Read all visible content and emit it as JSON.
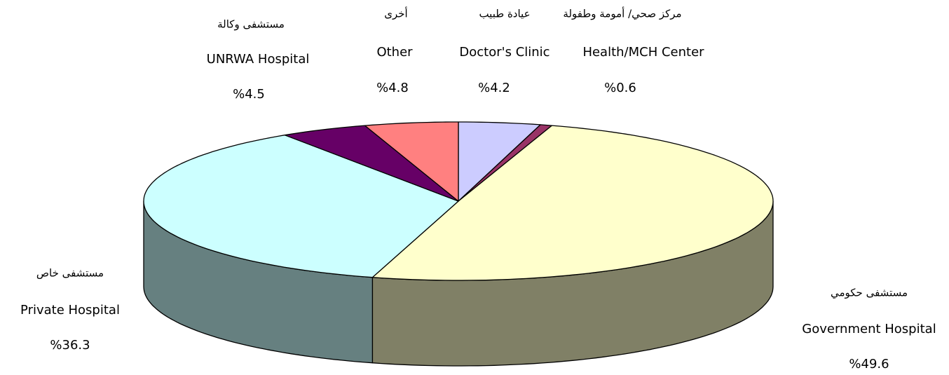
{
  "chart_data": {
    "type": "pie3d",
    "categories": [
      "Doctor's Clinic",
      "Health/MCH Center",
      "Government Hospital",
      "Private Hospital",
      "UNRWA Hospital",
      "Other"
    ],
    "categories_ar": [
      "عيادة طبيب",
      "مركز صحي/ أمومة وطفولة",
      "مستشفى حكومي",
      "مستشفى خاص",
      "مستشفى وكالة",
      "أخرى"
    ],
    "values": [
      4.2,
      0.6,
      49.6,
      36.3,
      4.5,
      4.8
    ],
    "value_labels": [
      "%4.2",
      "%0.6",
      "%49.6",
      "%36.3",
      "%4.5",
      "%4.8"
    ],
    "colors": [
      "#ccccff",
      "#993366",
      "#ffffcc",
      "#ccffff",
      "#660066",
      "#ff8080"
    ]
  }
}
